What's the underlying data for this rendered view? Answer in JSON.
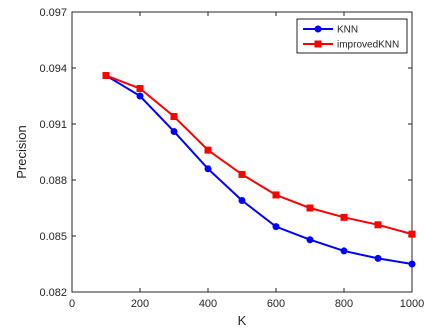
{
  "chart_data": {
    "type": "line",
    "title": "",
    "xlabel": "K",
    "ylabel": "Precision",
    "xlim": [
      0,
      1000
    ],
    "ylim": [
      0.082,
      0.097
    ],
    "x_ticks": [
      0,
      200,
      400,
      600,
      800,
      1000
    ],
    "y_ticks": [
      0.082,
      0.085,
      0.088,
      0.091,
      0.094,
      0.097
    ],
    "x_tick_labels": [
      "0",
      "200",
      "400",
      "600",
      "800",
      "1000"
    ],
    "y_tick_labels": [
      "0.082",
      "0.085",
      "0.088",
      "0.091",
      "0.094",
      "0.097"
    ],
    "grid": false,
    "legend_position": "top-right",
    "x": [
      100,
      200,
      300,
      400,
      500,
      600,
      700,
      800,
      900,
      1000
    ],
    "series": [
      {
        "name": "KNN",
        "color": "#0000ff",
        "marker": "circle",
        "values": [
          0.0936,
          0.0925,
          0.0906,
          0.0886,
          0.0869,
          0.0855,
          0.0848,
          0.0842,
          0.0838,
          0.0835
        ]
      },
      {
        "name": "improvedKNN",
        "color": "#ff0000",
        "marker": "square",
        "values": [
          0.0936,
          0.0929,
          0.0914,
          0.0896,
          0.0883,
          0.0872,
          0.0865,
          0.086,
          0.0856,
          0.0851
        ]
      }
    ]
  }
}
